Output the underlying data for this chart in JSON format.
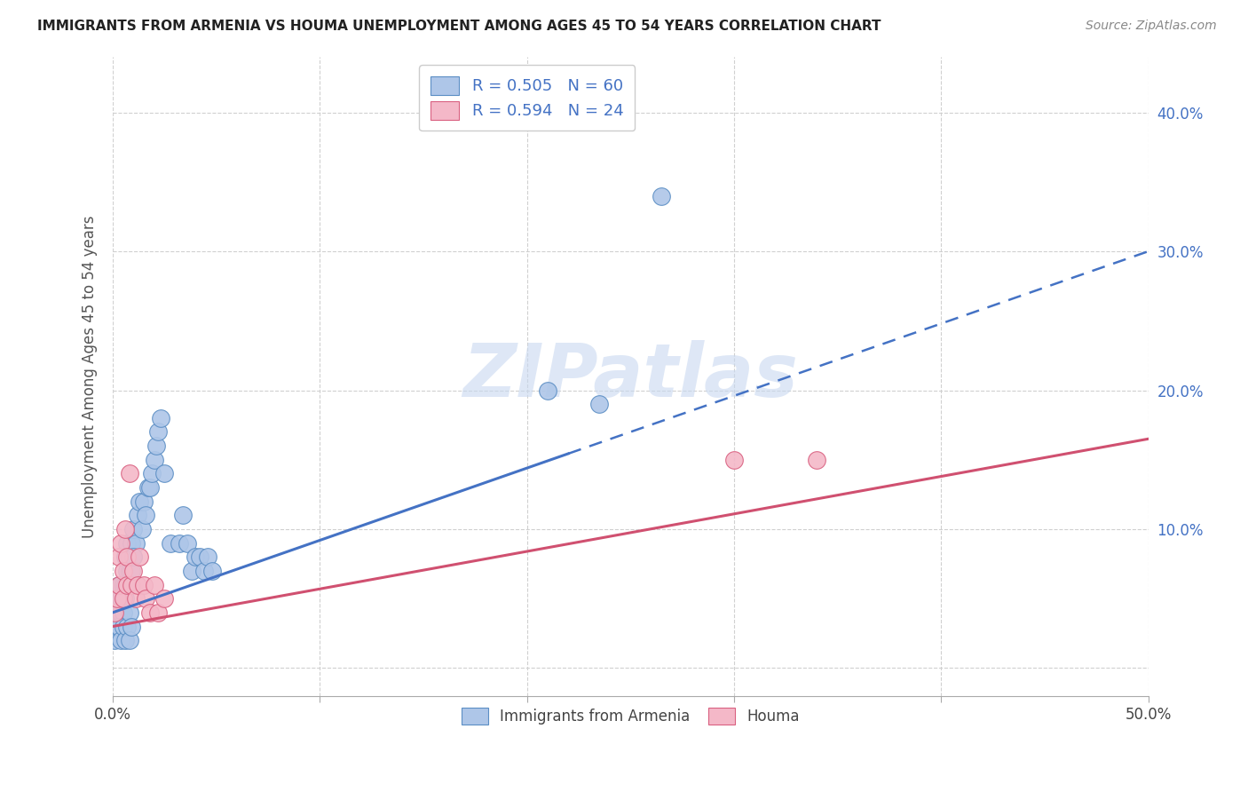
{
  "title": "IMMIGRANTS FROM ARMENIA VS HOUMA UNEMPLOYMENT AMONG AGES 45 TO 54 YEARS CORRELATION CHART",
  "source": "Source: ZipAtlas.com",
  "ylabel": "Unemployment Among Ages 45 to 54 years",
  "xlim": [
    0,
    0.5
  ],
  "ylim": [
    -0.02,
    0.44
  ],
  "plot_ylim": [
    0,
    0.42
  ],
  "xtick_positions": [
    0.0,
    0.1,
    0.2,
    0.3,
    0.4,
    0.5
  ],
  "xtick_labels_ends": [
    "0.0%",
    "",
    "",
    "",
    "",
    "50.0%"
  ],
  "ytick_positions": [
    0.0,
    0.1,
    0.2,
    0.3,
    0.4
  ],
  "ytick_labels": [
    "",
    "10.0%",
    "20.0%",
    "30.0%",
    "40.0%"
  ],
  "series1_color": "#aec6e8",
  "series1_edge": "#5b8ec4",
  "series2_color": "#f4b8c8",
  "series2_edge": "#d96080",
  "trend1_color": "#4472c4",
  "trend2_color": "#d05070",
  "legend_label1": "Immigrants from Armenia",
  "legend_label2": "Houma",
  "watermark": "ZIPatlas",
  "watermark_color": "#c8d8f0",
  "background_color": "#ffffff",
  "grid_color": "#d0d0d0",
  "title_color": "#222222",
  "ytick_color": "#4472c4",
  "scatter1_x": [
    0.001,
    0.002,
    0.002,
    0.003,
    0.003,
    0.003,
    0.004,
    0.004,
    0.004,
    0.005,
    0.005,
    0.005,
    0.006,
    0.006,
    0.006,
    0.007,
    0.007,
    0.007,
    0.008,
    0.008,
    0.009,
    0.009,
    0.01,
    0.01,
    0.011,
    0.012,
    0.013,
    0.014,
    0.015,
    0.016,
    0.017,
    0.018,
    0.019,
    0.02,
    0.021,
    0.022,
    0.023,
    0.025,
    0.028,
    0.032,
    0.034,
    0.036,
    0.038,
    0.04,
    0.042,
    0.044,
    0.046,
    0.048,
    0.21,
    0.235,
    0.265,
    0.003,
    0.004,
    0.005,
    0.006,
    0.007,
    0.008,
    0.008,
    0.009,
    0.01
  ],
  "scatter1_y": [
    0.02,
    0.04,
    0.03,
    0.05,
    0.04,
    0.06,
    0.05,
    0.04,
    0.06,
    0.05,
    0.06,
    0.04,
    0.05,
    0.06,
    0.08,
    0.06,
    0.07,
    0.09,
    0.07,
    0.08,
    0.07,
    0.09,
    0.08,
    0.1,
    0.09,
    0.11,
    0.12,
    0.1,
    0.12,
    0.11,
    0.13,
    0.13,
    0.14,
    0.15,
    0.16,
    0.17,
    0.18,
    0.14,
    0.09,
    0.09,
    0.11,
    0.09,
    0.07,
    0.08,
    0.08,
    0.07,
    0.08,
    0.07,
    0.2,
    0.19,
    0.34,
    0.03,
    0.02,
    0.03,
    0.02,
    0.03,
    0.02,
    0.04,
    0.03,
    0.08
  ],
  "scatter2_x": [
    0.001,
    0.002,
    0.003,
    0.003,
    0.004,
    0.005,
    0.005,
    0.006,
    0.007,
    0.007,
    0.008,
    0.009,
    0.01,
    0.011,
    0.012,
    0.013,
    0.015,
    0.016,
    0.018,
    0.02,
    0.022,
    0.025,
    0.3,
    0.34
  ],
  "scatter2_y": [
    0.04,
    0.05,
    0.08,
    0.06,
    0.09,
    0.07,
    0.05,
    0.1,
    0.06,
    0.08,
    0.14,
    0.06,
    0.07,
    0.05,
    0.06,
    0.08,
    0.06,
    0.05,
    0.04,
    0.06,
    0.04,
    0.05,
    0.15,
    0.15
  ],
  "trend1_x": [
    0.0,
    0.5
  ],
  "trend1_y": [
    0.04,
    0.3
  ],
  "trend1_solid_end": 0.22,
  "trend2_x": [
    0.0,
    0.5
  ],
  "trend2_y": [
    0.03,
    0.165
  ]
}
